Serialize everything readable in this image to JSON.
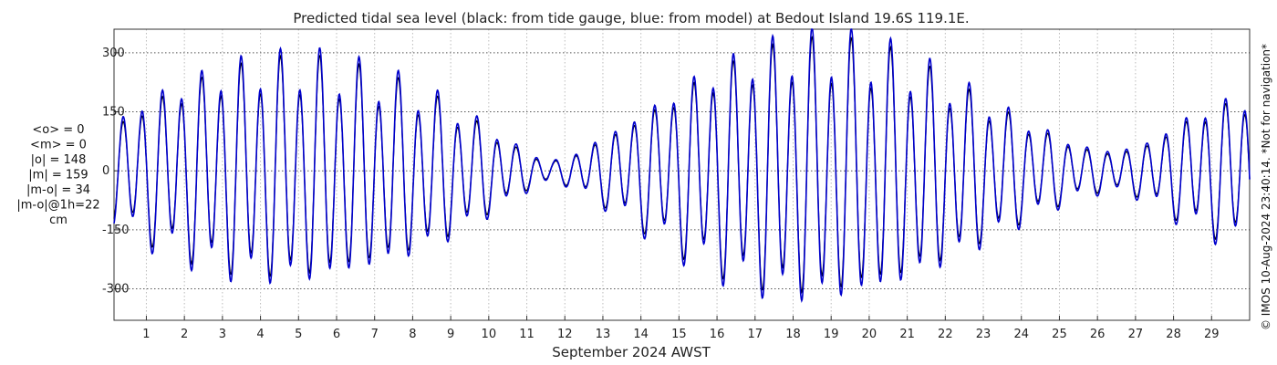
{
  "chart_data": {
    "type": "line",
    "title": "Predicted tidal sea level (black: from tide gauge, blue: from model) at Bedout Island 19.6S 119.1E.",
    "xlabel": "September 2024 AWST",
    "ylabel": "",
    "xlim": [
      0.15,
      30.0
    ],
    "ylim": [
      -380,
      360
    ],
    "yticks": [
      -300,
      -150,
      0,
      150,
      300
    ],
    "ytick_labels": [
      "-300",
      "-150",
      "0",
      "150",
      "300"
    ],
    "xticks": [
      1,
      2,
      3,
      4,
      5,
      6,
      7,
      8,
      9,
      10,
      11,
      12,
      13,
      14,
      15,
      16,
      17,
      18,
      19,
      20,
      21,
      22,
      23,
      24,
      25,
      26,
      27,
      28,
      29
    ],
    "xtick_labels": [
      "1",
      "2",
      "3",
      "4",
      "5",
      "6",
      "7",
      "8",
      "9",
      "10",
      "11",
      "12",
      "13",
      "14",
      "15",
      "16",
      "17",
      "18",
      "19",
      "20",
      "21",
      "22",
      "23",
      "24",
      "25",
      "26",
      "27",
      "28",
      "29"
    ],
    "grid": true,
    "series": [
      {
        "color": "#000000",
        "description": "tide gauge",
        "x": [
          0.15,
          0.6,
          1.0,
          1.4,
          1.9,
          2.4,
          2.8,
          3.3,
          3.8,
          4.3,
          4.7,
          5.2,
          5.7,
          6.1,
          6.5,
          6.9,
          7.4,
          7.9,
          8.4,
          8.9,
          9.3,
          9.8,
          10.3,
          10.7,
          11.2,
          11.7,
          12.2,
          12.6,
          13.1,
          13.6,
          14.1,
          14.6,
          15.0,
          15.4,
          15.9,
          16.4,
          16.8,
          17.3,
          17.8,
          18.3,
          18.8,
          19.2,
          19.6,
          20.1,
          20.6,
          21.0,
          21.5,
          22.0,
          22.5,
          23.0,
          23.5,
          24.0,
          24.5,
          25.0,
          25.4,
          25.8,
          26.3,
          26.8,
          27.3,
          27.7,
          28.1,
          28.6,
          29.1,
          29.6,
          30.0
        ],
        "amplitude": [
          120,
          150,
          175,
          195,
          215,
          235,
          250,
          262,
          270,
          275,
          277,
          277,
          273,
          265,
          255,
          243,
          230,
          212,
          192,
          170,
          145,
          118,
          90,
          62,
          38,
          25,
          40,
          62,
          90,
          120,
          150,
          180,
          205,
          230,
          255,
          275,
          292,
          305,
          315,
          320,
          322,
          320,
          315,
          305,
          292,
          275,
          255,
          230,
          205,
          180,
          155,
          130,
          105,
          85,
          68,
          55,
          50,
          55,
          70,
          95,
          120,
          145,
          165,
          180,
          190
        ]
      },
      {
        "color": "#0000cc",
        "description": "model",
        "x": [
          0.15,
          0.6,
          1.0,
          1.4,
          1.9,
          2.4,
          2.8,
          3.3,
          3.8,
          4.3,
          4.7,
          5.2,
          5.7,
          6.1,
          6.5,
          6.9,
          7.4,
          7.9,
          8.4,
          8.9,
          9.3,
          9.8,
          10.3,
          10.7,
          11.2,
          11.7,
          12.2,
          12.6,
          13.1,
          13.6,
          14.1,
          14.6,
          15.0,
          15.4,
          15.9,
          16.4,
          16.8,
          17.3,
          17.8,
          18.3,
          18.8,
          19.2,
          19.6,
          20.1,
          20.6,
          21.0,
          21.5,
          22.0,
          22.5,
          23.0,
          23.5,
          24.0,
          24.5,
          25.0,
          25.4,
          25.8,
          26.3,
          26.8,
          27.3,
          27.7,
          28.1,
          28.6,
          29.1,
          29.6,
          30.0
        ],
        "amplitude": [
          132,
          165,
          190,
          212,
          232,
          252,
          268,
          280,
          288,
          293,
          295,
          295,
          291,
          283,
          273,
          261,
          248,
          228,
          207,
          184,
          158,
          130,
          100,
          70,
          44,
          28,
          44,
          68,
          98,
          130,
          162,
          193,
          220,
          246,
          272,
          293,
          312,
          326,
          337,
          343,
          345,
          343,
          338,
          327,
          313,
          295,
          274,
          248,
          222,
          195,
          168,
          141,
          115,
          93,
          75,
          62,
          57,
          62,
          78,
          104,
          130,
          157,
          178,
          193,
          204
        ]
      }
    ],
    "stats": [
      "<o> = 0",
      "<m> = 0",
      "|o| = 148",
      "|m| = 159",
      "|m-o| = 34",
      "|m-o|@1h=22",
      "cm"
    ],
    "side_note": "© IMOS 10-Aug-2024 23:40:14. *Not for navigation*"
  }
}
